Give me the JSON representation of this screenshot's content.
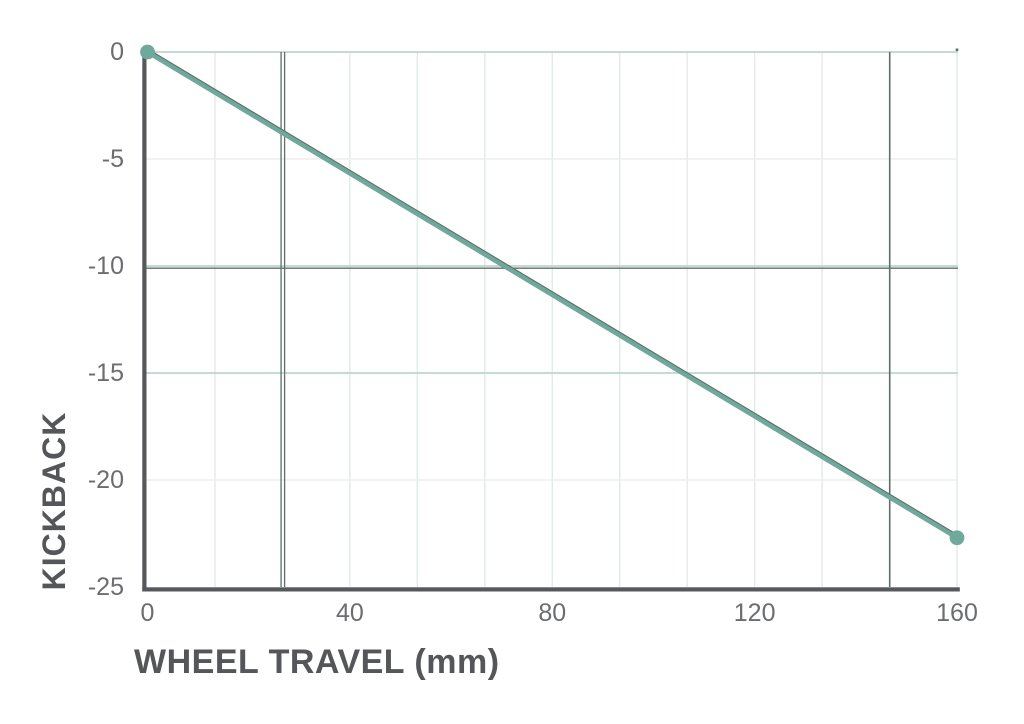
{
  "chart_data": {
    "type": "line",
    "title": "",
    "xlabel": "WHEEL TRAVEL (mm)",
    "ylabel": "KICKBACK",
    "xlim": [
      0,
      160
    ],
    "ylim": [
      -25,
      0
    ],
    "x_ticks": [
      0,
      40,
      80,
      120,
      160
    ],
    "y_ticks": [
      0,
      -5,
      -10,
      -15,
      -20,
      -25
    ],
    "x_tick_labels": [
      "0",
      "40",
      "80",
      "120",
      "160"
    ],
    "y_tick_labels": [
      "0",
      "-5",
      "-10",
      "-15",
      "-20",
      "-25"
    ],
    "x_minor_divisions": 12,
    "grid": true,
    "legend": "none",
    "series": [
      {
        "name": "kickback",
        "points": [
          [
            0,
            0
          ],
          [
            160,
            -22.7
          ]
        ],
        "marker": "circle",
        "marker_on": "endpoints"
      }
    ],
    "reference_lines": {
      "vertical_pair_mm": [
        26.4,
        27.1
      ],
      "vertical_single_mm": [
        146.7
      ],
      "horizontal_values": [
        -10.1
      ]
    },
    "colors": {
      "line": "#6FA99B",
      "line_edge": "#5E6F69",
      "marker": "#6FA99B",
      "grid_teal": "#C5DAD3",
      "grid_gray": "#EDEDED",
      "grid_minor": "#E2EAE6",
      "reference": "#5E6F69",
      "axis": "#56585B",
      "tick_text": "#6B6D6F",
      "label_text": "#54565A",
      "background": "#FFFFFF"
    },
    "y_gridlines": [
      {
        "value": 0,
        "tone": "teal"
      },
      {
        "value": -5,
        "tone": "gray"
      },
      {
        "value": -10,
        "tone": "teal"
      },
      {
        "value": -15,
        "tone": "teal"
      },
      {
        "value": -20,
        "tone": "gray"
      }
    ]
  }
}
